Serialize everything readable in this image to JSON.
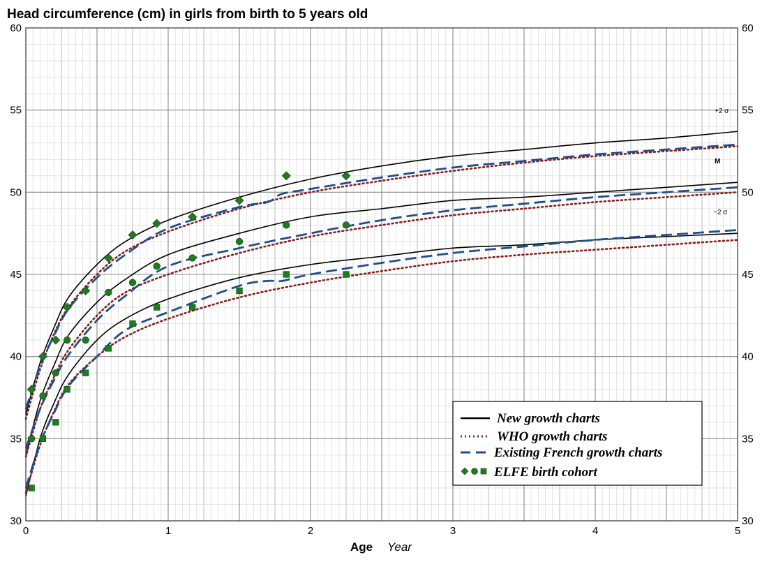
{
  "chart_data": {
    "type": "line",
    "title": "Head circumference (cm) in girls from birth to 5 years old",
    "xlabel": "Age",
    "xunit": "Year",
    "ylabel": "",
    "xlim": [
      0,
      5
    ],
    "ylim": [
      30,
      60
    ],
    "x_ticks": [
      "0",
      "1",
      "2",
      "3",
      "4",
      "5"
    ],
    "y_ticks": [
      "30",
      "35",
      "40",
      "45",
      "50",
      "55",
      "60"
    ],
    "grid": true,
    "legend_position": "bottom-right",
    "curve_labels": {
      "plus2": "+2 σ",
      "median": "M",
      "minus2": "−2 σ"
    },
    "series": [
      {
        "name": "New growth charts",
        "style": "solid",
        "color": "#000000",
        "curves": [
          {
            "level": "+2 σ",
            "points": [
              [
                0,
                36.5
              ],
              [
                0.1,
                39.6
              ],
              [
                0.2,
                41.8
              ],
              [
                0.3,
                43.6
              ],
              [
                0.5,
                45.6
              ],
              [
                0.7,
                47.0
              ],
              [
                1.0,
                48.3
              ],
              [
                1.5,
                49.7
              ],
              [
                2.0,
                50.8
              ],
              [
                2.5,
                51.6
              ],
              [
                3.0,
                52.2
              ],
              [
                3.5,
                52.6
              ],
              [
                4.0,
                53.0
              ],
              [
                4.5,
                53.3
              ],
              [
                5.0,
                53.7
              ]
            ]
          },
          {
            "level": "M",
            "points": [
              [
                0,
                34.0
              ],
              [
                0.1,
                37.3
              ],
              [
                0.2,
                39.5
              ],
              [
                0.3,
                41.3
              ],
              [
                0.5,
                43.3
              ],
              [
                0.7,
                44.7
              ],
              [
                1.0,
                46.2
              ],
              [
                1.5,
                47.5
              ],
              [
                2.0,
                48.5
              ],
              [
                2.5,
                49.0
              ],
              [
                3.0,
                49.5
              ],
              [
                3.5,
                49.7
              ],
              [
                4.0,
                50.0
              ],
              [
                4.5,
                50.3
              ],
              [
                5.0,
                50.6
              ]
            ]
          },
          {
            "level": "−2 σ",
            "points": [
              [
                0,
                31.5
              ],
              [
                0.1,
                35.0
              ],
              [
                0.2,
                37.2
              ],
              [
                0.3,
                38.9
              ],
              [
                0.5,
                41.0
              ],
              [
                0.7,
                42.3
              ],
              [
                1.0,
                43.5
              ],
              [
                1.5,
                44.8
              ],
              [
                2.0,
                45.6
              ],
              [
                2.5,
                46.1
              ],
              [
                3.0,
                46.6
              ],
              [
                3.5,
                46.8
              ],
              [
                4.0,
                47.1
              ],
              [
                4.5,
                47.3
              ],
              [
                5.0,
                47.5
              ]
            ]
          }
        ]
      },
      {
        "name": "WHO growth charts",
        "style": "dotted",
        "color": "#8b1a1a",
        "curves": [
          {
            "level": "+2 σ",
            "points": [
              [
                0,
                36.2
              ],
              [
                0.1,
                39.2
              ],
              [
                0.2,
                41.4
              ],
              [
                0.3,
                43.0
              ],
              [
                0.5,
                45.0
              ],
              [
                0.7,
                46.4
              ],
              [
                1.0,
                47.6
              ],
              [
                1.5,
                49.0
              ],
              [
                2.0,
                50.0
              ],
              [
                2.5,
                50.7
              ],
              [
                3.0,
                51.3
              ],
              [
                3.5,
                51.8
              ],
              [
                4.0,
                52.2
              ],
              [
                4.5,
                52.5
              ],
              [
                5.0,
                52.8
              ]
            ]
          },
          {
            "level": "M",
            "points": [
              [
                0,
                33.9
              ],
              [
                0.1,
                36.8
              ],
              [
                0.2,
                38.8
              ],
              [
                0.3,
                40.4
              ],
              [
                0.5,
                42.5
              ],
              [
                0.7,
                43.9
              ],
              [
                1.0,
                45.0
              ],
              [
                1.5,
                46.3
              ],
              [
                2.0,
                47.3
              ],
              [
                2.5,
                48.0
              ],
              [
                3.0,
                48.6
              ],
              [
                3.5,
                49.0
              ],
              [
                4.0,
                49.4
              ],
              [
                4.5,
                49.7
              ],
              [
                5.0,
                50.0
              ]
            ]
          },
          {
            "level": "−2 σ",
            "points": [
              [
                0,
                31.7
              ],
              [
                0.1,
                34.6
              ],
              [
                0.2,
                36.7
              ],
              [
                0.3,
                38.3
              ],
              [
                0.5,
                40.0
              ],
              [
                0.7,
                41.2
              ],
              [
                1.0,
                42.3
              ],
              [
                1.5,
                43.6
              ],
              [
                2.0,
                44.5
              ],
              [
                2.5,
                45.2
              ],
              [
                3.0,
                45.8
              ],
              [
                3.5,
                46.2
              ],
              [
                4.0,
                46.5
              ],
              [
                4.5,
                46.8
              ],
              [
                5.0,
                47.1
              ]
            ]
          }
        ]
      },
      {
        "name": "Existing French growth charts",
        "style": "dashed",
        "color": "#1f4e8c",
        "curves": [
          {
            "level": "+2 σ",
            "points": [
              [
                0,
                36.8
              ],
              [
                0.1,
                39.4
              ],
              [
                0.2,
                41.3
              ],
              [
                0.3,
                42.9
              ],
              [
                0.5,
                44.8
              ],
              [
                0.7,
                46.2
              ],
              [
                1.0,
                47.8
              ],
              [
                1.5,
                49.1
              ],
              [
                1.7,
                49.4
              ],
              [
                1.8,
                49.9
              ],
              [
                2.0,
                50.2
              ],
              [
                2.5,
                50.9
              ],
              [
                3.0,
                51.5
              ],
              [
                3.5,
                51.9
              ],
              [
                4.0,
                52.3
              ],
              [
                4.5,
                52.6
              ],
              [
                5.0,
                52.9
              ]
            ]
          },
          {
            "level": "M",
            "points": [
              [
                0,
                34.4
              ],
              [
                0.1,
                36.8
              ],
              [
                0.2,
                38.6
              ],
              [
                0.3,
                40.1
              ],
              [
                0.5,
                42.2
              ],
              [
                0.7,
                43.7
              ],
              [
                1.0,
                45.5
              ],
              [
                1.5,
                46.6
              ],
              [
                2.0,
                47.5
              ],
              [
                2.5,
                48.3
              ],
              [
                3.0,
                48.9
              ],
              [
                3.5,
                49.3
              ],
              [
                4.0,
                49.7
              ],
              [
                4.5,
                50.0
              ],
              [
                5.0,
                50.3
              ]
            ]
          },
          {
            "level": "−2 σ",
            "points": [
              [
                0,
                32.0
              ],
              [
                0.1,
                34.7
              ],
              [
                0.2,
                36.6
              ],
              [
                0.3,
                38.2
              ],
              [
                0.5,
                40.0
              ],
              [
                0.7,
                41.6
              ],
              [
                1.0,
                42.7
              ],
              [
                1.5,
                44.3
              ],
              [
                1.7,
                44.6
              ],
              [
                1.8,
                44.6
              ],
              [
                2.0,
                45.0
              ],
              [
                2.5,
                45.7
              ],
              [
                3.0,
                46.3
              ],
              [
                3.5,
                46.7
              ],
              [
                4.0,
                47.1
              ],
              [
                4.5,
                47.4
              ],
              [
                5.0,
                47.7
              ]
            ]
          }
        ]
      }
    ],
    "cohort": {
      "name": "ELFE birth cohort",
      "color": "#1e7b1e",
      "groups": [
        {
          "level": "+2 σ",
          "marker": "diamond",
          "points": [
            [
              0.04,
              38
            ],
            [
              0.12,
              40
            ],
            [
              0.21,
              41
            ],
            [
              0.29,
              43
            ],
            [
              0.42,
              44
            ],
            [
              0.58,
              46
            ],
            [
              0.75,
              47.4
            ],
            [
              0.92,
              48.1
            ],
            [
              1.17,
              48.5
            ],
            [
              1.5,
              49.5
            ],
            [
              1.83,
              51
            ],
            [
              2.25,
              51
            ]
          ]
        },
        {
          "level": "M",
          "marker": "circle",
          "points": [
            [
              0.04,
              35
            ],
            [
              0.12,
              37.6
            ],
            [
              0.21,
              39
            ],
            [
              0.29,
              41
            ],
            [
              0.42,
              41
            ],
            [
              0.58,
              43.9
            ],
            [
              0.75,
              44.5
            ],
            [
              0.92,
              45.5
            ],
            [
              1.17,
              46
            ],
            [
              1.5,
              47
            ],
            [
              1.83,
              48
            ],
            [
              2.25,
              48
            ]
          ]
        },
        {
          "level": "−2 σ",
          "marker": "square",
          "points": [
            [
              0.04,
              32
            ],
            [
              0.12,
              35
            ],
            [
              0.21,
              36
            ],
            [
              0.29,
              38
            ],
            [
              0.42,
              39
            ],
            [
              0.58,
              40.5
            ],
            [
              0.75,
              42
            ],
            [
              0.92,
              43
            ],
            [
              1.17,
              43
            ],
            [
              1.5,
              44
            ],
            [
              1.83,
              45
            ],
            [
              2.25,
              45
            ]
          ]
        }
      ]
    }
  }
}
